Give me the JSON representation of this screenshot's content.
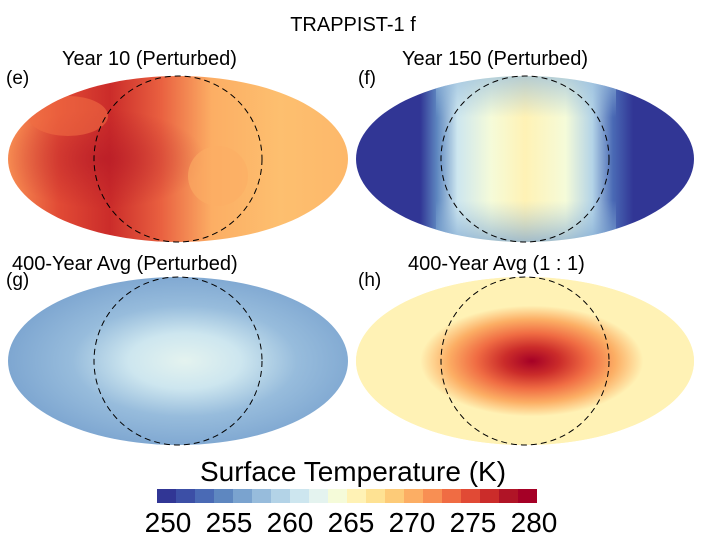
{
  "title": "TRAPPIST-1 f",
  "panels": [
    {
      "label": "(e)",
      "title": "Year 10 (Perturbed)",
      "map": "e"
    },
    {
      "label": "(f)",
      "title": "Year 150 (Perturbed)",
      "map": "f"
    },
    {
      "label": "(g)",
      "title": "400-Year Avg (Perturbed)",
      "map": "g"
    },
    {
      "label": "(h)",
      "title": "400-Year Avg (1 : 1)",
      "map": "h"
    }
  ],
  "colorbar": {
    "title": "Surface Temperature (K)",
    "ticks": [
      "250",
      "255",
      "260",
      "265",
      "270",
      "275",
      "280"
    ],
    "colors": [
      "#313695",
      "#3c4fa6",
      "#4a6ab5",
      "#5e87c0",
      "#7aa3cf",
      "#97bcdc",
      "#b3d3e7",
      "#cde6ef",
      "#e4f3ef",
      "#f5fbd9",
      "#fff2b5",
      "#fee293",
      "#fdcb78",
      "#fcae64",
      "#f88f53",
      "#f06c43",
      "#e14a35",
      "#cb2c2a",
      "#b01426",
      "#a50026"
    ]
  },
  "chart_data": {
    "type": "heatmap",
    "title": "TRAPPIST-1 f",
    "variable": "Surface Temperature (K)",
    "color_range": [
      250,
      281
    ],
    "panels": [
      {
        "label": "(e)",
        "title": "Year 10 (Perturbed)",
        "approx_temp_range_K": [
          268,
          279
        ]
      },
      {
        "label": "(f)",
        "title": "Year 150 (Perturbed)",
        "approx_temp_range_K": [
          250,
          266
        ]
      },
      {
        "label": "(g)",
        "title": "400-Year Avg (Perturbed)",
        "approx_temp_range_K": [
          257,
          264
        ]
      },
      {
        "label": "(h)",
        "title": "400-Year Avg (1 : 1)",
        "approx_temp_range_K": [
          265,
          280
        ]
      }
    ]
  }
}
